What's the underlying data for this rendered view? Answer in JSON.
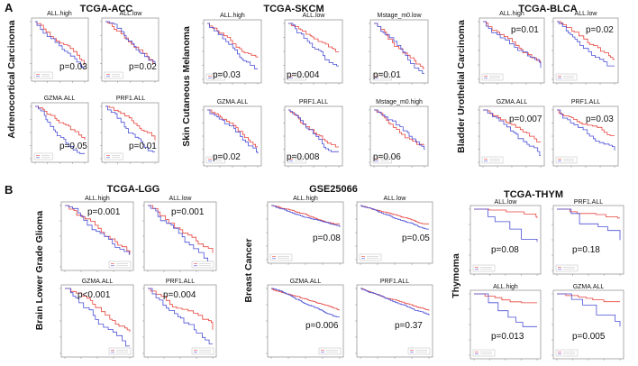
{
  "panels": [
    {
      "letter": "A",
      "groups": [
        {
          "title": "TCGA-ACC",
          "side_label": "Adrenocortical Carcinoma",
          "plots": [
            {
              "label": "ALL.high",
              "pvalue": "p=0.03"
            },
            {
              "label": "ALL.low",
              "pvalue": "p=0.02"
            },
            {
              "label": "GZMA.ALL",
              "pvalue": "p=0.05"
            },
            {
              "label": "PRF1.ALL",
              "pvalue": "p=0.01"
            }
          ]
        },
        {
          "title": "TCGA-SKCM",
          "side_label": "Skin Cutaneous Melanoma",
          "plots": [
            {
              "label": "ALL.high",
              "pvalue": "p=0.03"
            },
            {
              "label": "ALL.low",
              "pvalue": "p=0.004"
            },
            {
              "label": "Mstage_m0.low",
              "pvalue": "p=0.01"
            },
            {
              "label": "GZMA.ALL",
              "pvalue": "p=0.02"
            },
            {
              "label": "PRF1.ALL",
              "pvalue": "p=0.008"
            },
            {
              "label": "Mstage_m0.high",
              "pvalue": "p=0.06"
            }
          ]
        },
        {
          "title": "TCGA-BLCA",
          "side_label": "Bladder Urothelial Carcinoma",
          "plots": [
            {
              "label": "ALL.high",
              "pvalue": "p=0.01"
            },
            {
              "label": "ALL.low",
              "pvalue": "p=0.02"
            },
            {
              "label": "GZMA.ALL",
              "pvalue": "p=0.007"
            },
            {
              "label": "PRF1.ALL",
              "pvalue": "p=0.03"
            }
          ]
        }
      ]
    },
    {
      "letter": "B",
      "groups": [
        {
          "title": "TCGA-LGG",
          "side_label": "Brain Lower Grade Glioma",
          "plots": [
            {
              "label": "ALL.high",
              "pvalue": "p=0.001"
            },
            {
              "label": "ALL.low",
              "pvalue": "p=0.001"
            },
            {
              "label": "GZMA.ALL",
              "pvalue": "p<0.001"
            },
            {
              "label": "PRF1.ALL",
              "pvalue": "p=0.004"
            }
          ]
        },
        {
          "title": "GSE25066",
          "side_label": "Breast Cancer",
          "plots": [
            {
              "label": "ALL.high",
              "pvalue": "p=0.08"
            },
            {
              "label": "ALL.low",
              "pvalue": "p=0.05"
            },
            {
              "label": "GZMA.ALL",
              "pvalue": "p=0.006"
            },
            {
              "label": "PRF1.ALL",
              "pvalue": "p=0.37"
            }
          ]
        },
        {
          "title": "TCGA-THYM",
          "side_label": "Thymoma",
          "plots": [
            {
              "label": "ALL.low",
              "pvalue": "p=0.08"
            },
            {
              "label": "PRF1.ALL",
              "pvalue": "p=0.18"
            },
            {
              "label": "ALL.high",
              "pvalue": "p=0.013"
            },
            {
              "label": "GZMA.ALL",
              "pvalue": "p=0.005"
            }
          ]
        }
      ]
    }
  ],
  "colors": {
    "high": "#e8433c",
    "low": "#4a4fd6",
    "frame": "#8a8a8a",
    "text": "#111111"
  }
}
